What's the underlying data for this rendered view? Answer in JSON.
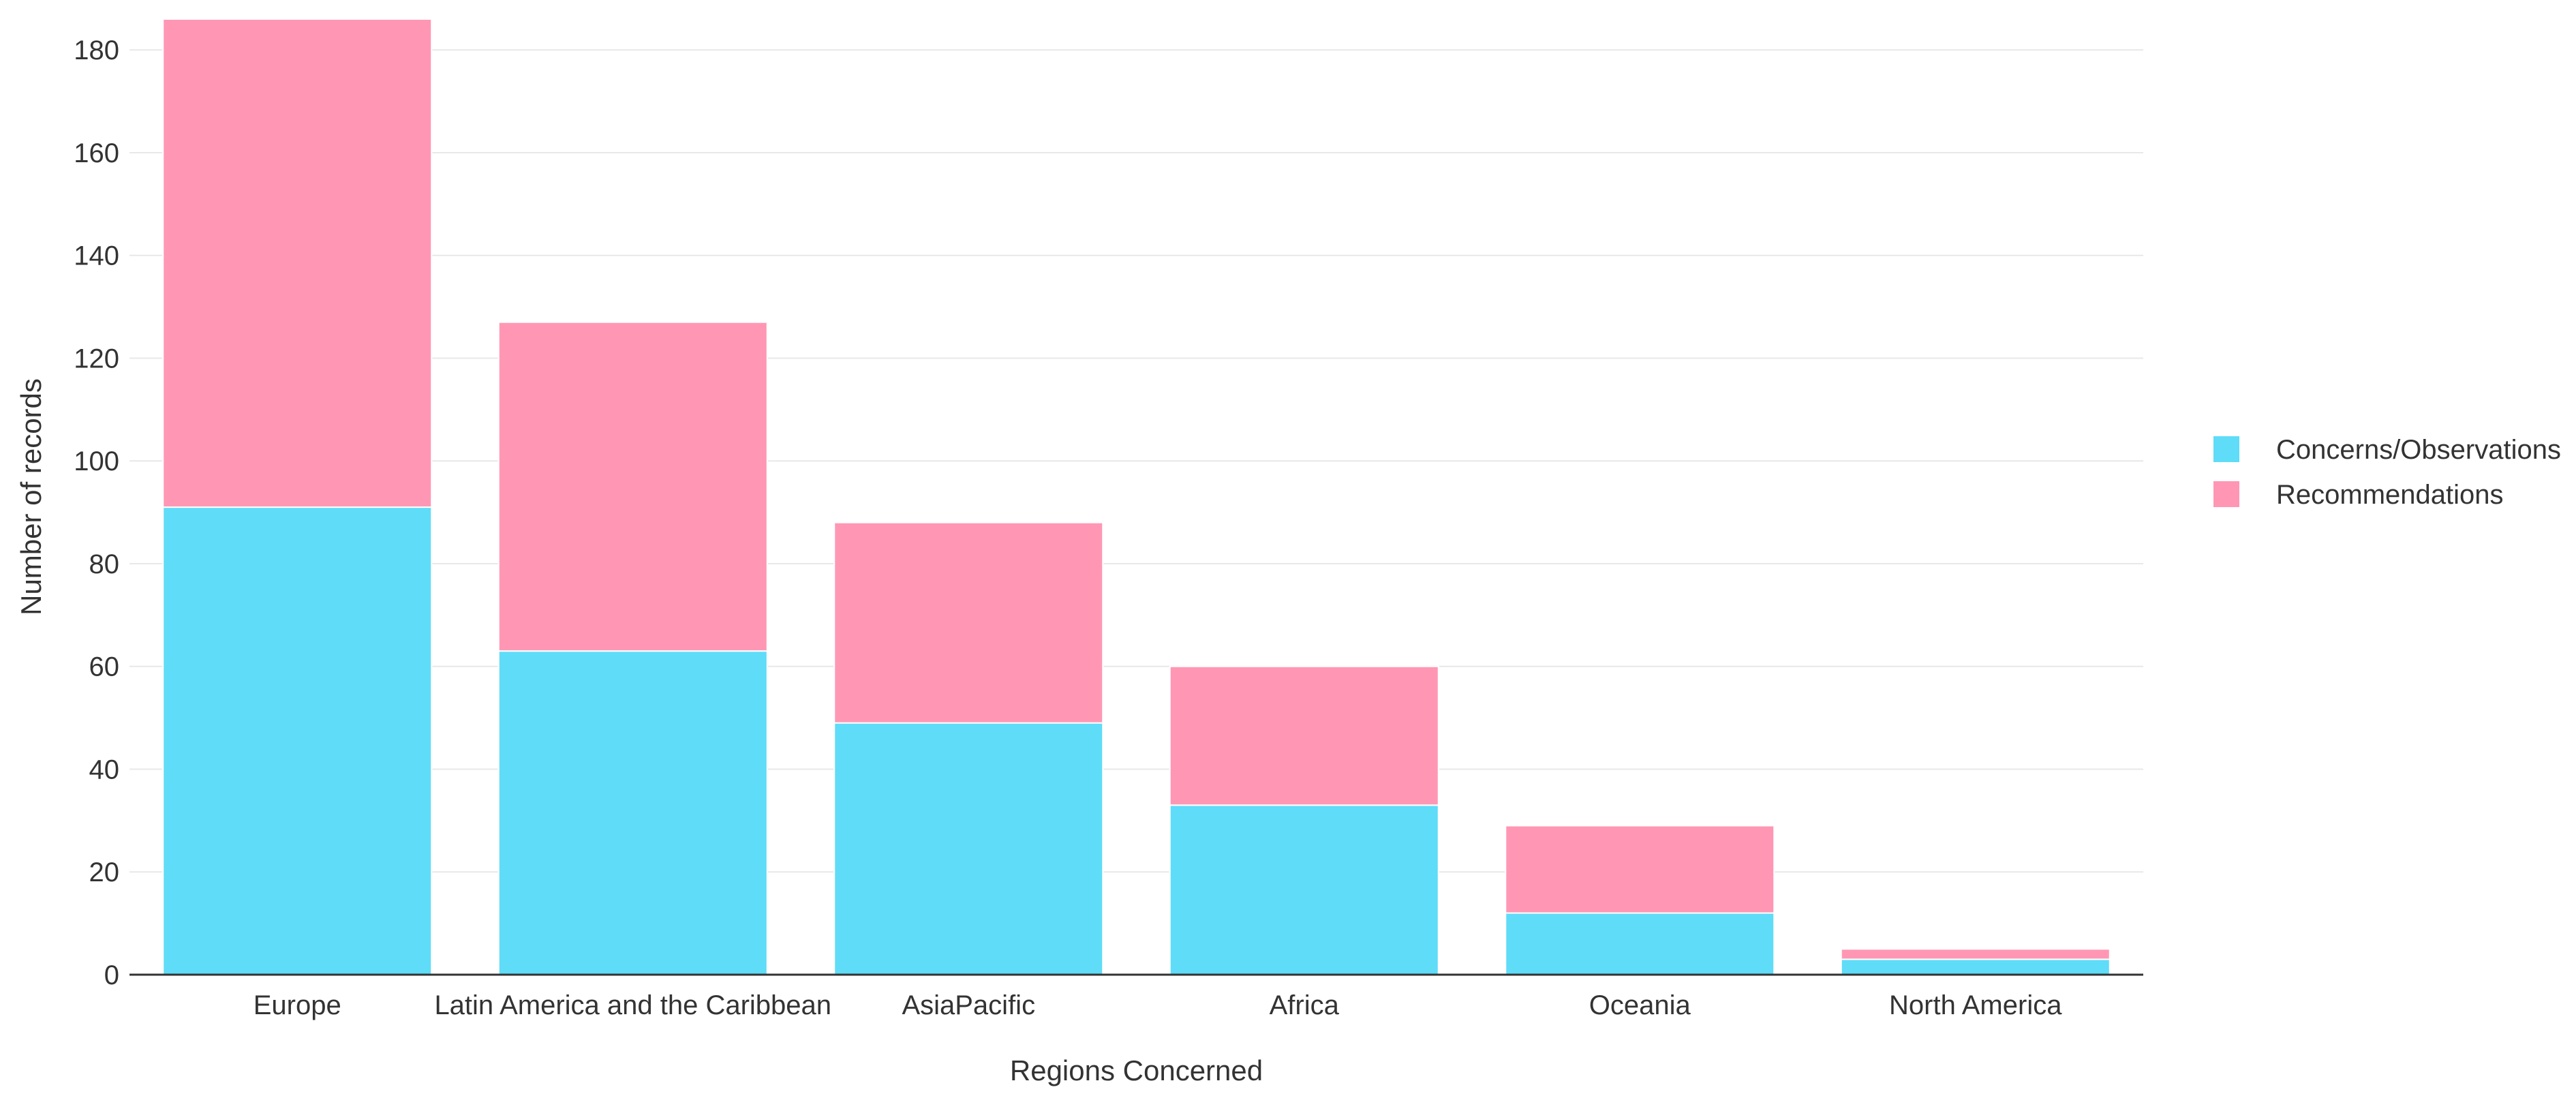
{
  "chart_data": {
    "type": "bar",
    "stacked": true,
    "categories": [
      "Europe",
      "Latin America and the Caribbean",
      "AsiaPacific",
      "Africa",
      "Oceania",
      "North America"
    ],
    "series": [
      {
        "name": "Concerns/Observations",
        "color": "#5fdcf8",
        "values": [
          91,
          63,
          49,
          33,
          12,
          3
        ]
      },
      {
        "name": "Recommendations",
        "color": "#ff97b4",
        "values": [
          95,
          64,
          39,
          27,
          17,
          2
        ]
      }
    ],
    "xlabel": "Regions Concerned",
    "ylabel": "Number of records",
    "ylim": [
      0,
      186
    ],
    "yticks": [
      0,
      20,
      40,
      60,
      80,
      100,
      120,
      140,
      160,
      180
    ],
    "grid": true,
    "legend_position": "right"
  }
}
